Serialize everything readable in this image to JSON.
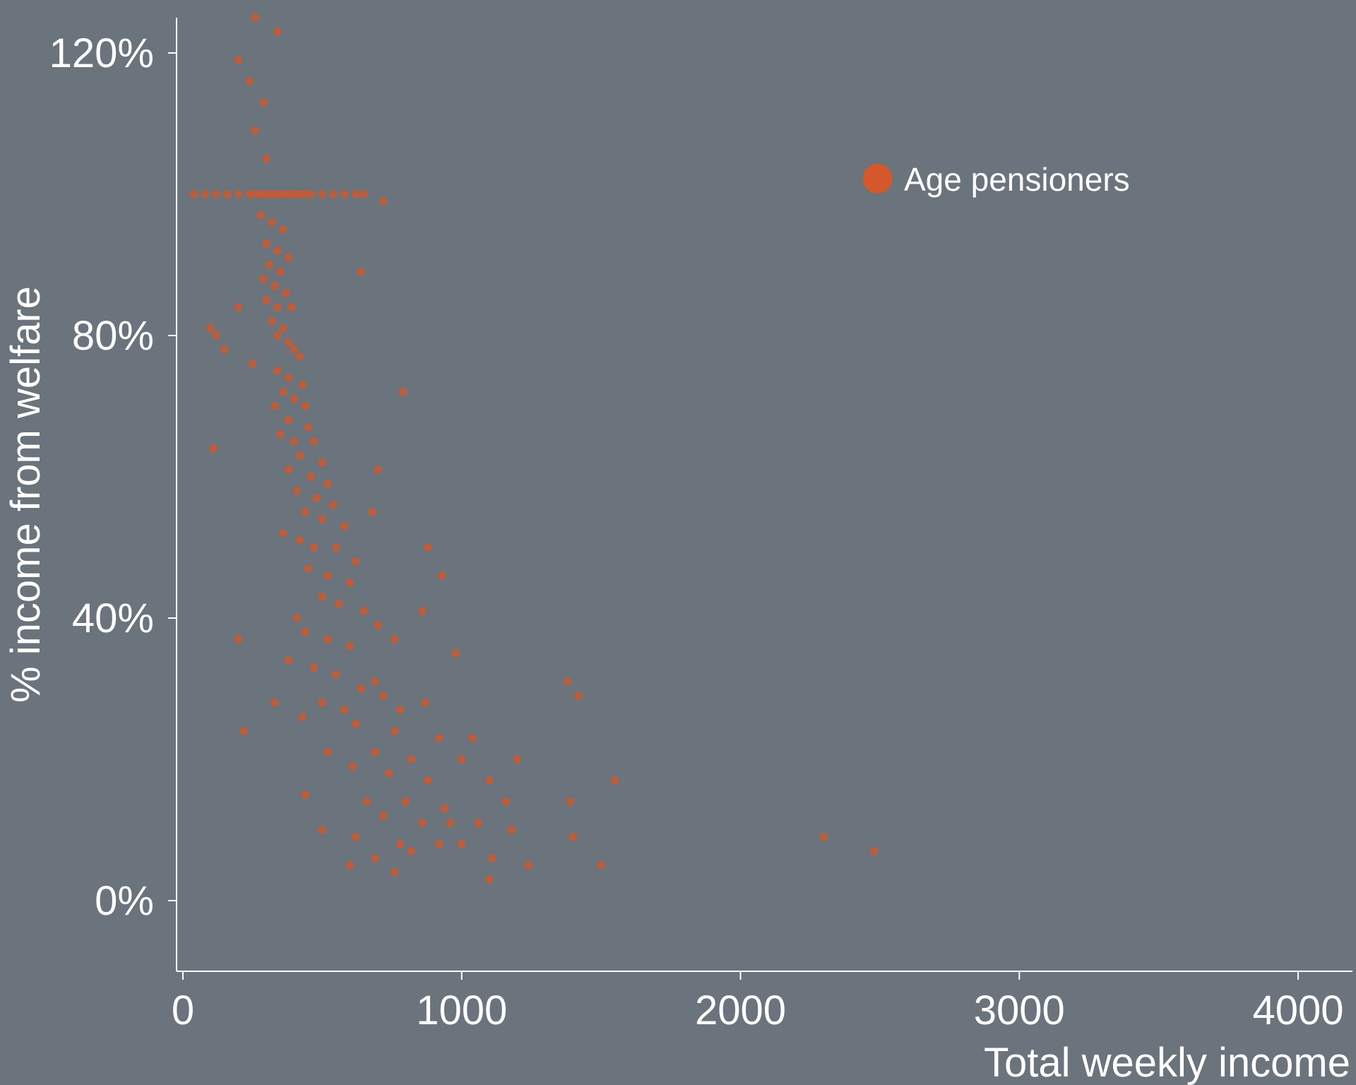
{
  "chart_data": {
    "type": "scatter",
    "title": "",
    "xlabel": "Total weekly income",
    "ylabel": "% income from welfare",
    "xlim": [
      -20,
      4200
    ],
    "ylim": [
      -10,
      125
    ],
    "x_ticks": [
      0,
      1000,
      2000,
      3000,
      4000
    ],
    "x_tick_labels": [
      "0",
      "1000",
      "2000",
      "3000",
      "4000"
    ],
    "y_ticks": [
      0,
      40,
      80,
      120
    ],
    "y_tick_labels": [
      "0%",
      "40%",
      "80%",
      "120%"
    ],
    "grid": false,
    "legend_position": "top-right",
    "colors": {
      "background": "#6b737c",
      "point": "#d4582b",
      "axis": "#ffffff",
      "text": "#ffffff"
    },
    "series": [
      {
        "name": "Age pensioners",
        "color": "#d4582b",
        "points": [
          [
            260,
            125
          ],
          [
            340,
            123
          ],
          [
            200,
            119
          ],
          [
            240,
            116
          ],
          [
            290,
            113
          ],
          [
            260,
            109
          ],
          [
            300,
            105
          ],
          [
            40,
            100
          ],
          [
            80,
            100
          ],
          [
            120,
            100
          ],
          [
            160,
            100
          ],
          [
            200,
            100
          ],
          [
            240,
            100
          ],
          [
            260,
            100
          ],
          [
            280,
            100
          ],
          [
            300,
            100
          ],
          [
            320,
            100
          ],
          [
            340,
            100
          ],
          [
            360,
            100
          ],
          [
            380,
            100
          ],
          [
            400,
            100
          ],
          [
            420,
            100
          ],
          [
            440,
            100
          ],
          [
            460,
            100
          ],
          [
            500,
            100
          ],
          [
            540,
            100
          ],
          [
            580,
            100
          ],
          [
            620,
            100
          ],
          [
            650,
            100
          ],
          [
            720,
            99
          ],
          [
            280,
            97
          ],
          [
            320,
            96
          ],
          [
            360,
            95
          ],
          [
            300,
            93
          ],
          [
            340,
            92
          ],
          [
            380,
            91
          ],
          [
            310,
            90
          ],
          [
            350,
            89
          ],
          [
            640,
            89
          ],
          [
            290,
            88
          ],
          [
            330,
            87
          ],
          [
            370,
            86
          ],
          [
            300,
            85
          ],
          [
            340,
            84
          ],
          [
            390,
            84
          ],
          [
            200,
            84
          ],
          [
            320,
            82
          ],
          [
            360,
            81
          ],
          [
            100,
            81
          ],
          [
            120,
            80
          ],
          [
            340,
            80
          ],
          [
            380,
            79
          ],
          [
            150,
            78
          ],
          [
            400,
            78
          ],
          [
            420,
            77
          ],
          [
            250,
            76
          ],
          [
            340,
            75
          ],
          [
            380,
            74
          ],
          [
            430,
            73
          ],
          [
            360,
            72
          ],
          [
            400,
            71
          ],
          [
            440,
            70
          ],
          [
            790,
            72
          ],
          [
            330,
            70
          ],
          [
            380,
            68
          ],
          [
            450,
            67
          ],
          [
            350,
            66
          ],
          [
            400,
            65
          ],
          [
            470,
            65
          ],
          [
            420,
            63
          ],
          [
            500,
            62
          ],
          [
            110,
            64
          ],
          [
            380,
            61
          ],
          [
            460,
            60
          ],
          [
            520,
            59
          ],
          [
            700,
            61
          ],
          [
            410,
            58
          ],
          [
            480,
            57
          ],
          [
            540,
            56
          ],
          [
            440,
            55
          ],
          [
            500,
            54
          ],
          [
            680,
            55
          ],
          [
            580,
            53
          ],
          [
            360,
            52
          ],
          [
            420,
            51
          ],
          [
            470,
            50
          ],
          [
            550,
            50
          ],
          [
            880,
            50
          ],
          [
            620,
            48
          ],
          [
            450,
            47
          ],
          [
            520,
            46
          ],
          [
            600,
            45
          ],
          [
            930,
            46
          ],
          [
            500,
            43
          ],
          [
            560,
            42
          ],
          [
            650,
            41
          ],
          [
            410,
            40
          ],
          [
            700,
            39
          ],
          [
            860,
            41
          ],
          [
            440,
            38
          ],
          [
            520,
            37
          ],
          [
            600,
            36
          ],
          [
            760,
            37
          ],
          [
            200,
            37
          ],
          [
            980,
            35
          ],
          [
            380,
            34
          ],
          [
            470,
            33
          ],
          [
            550,
            32
          ],
          [
            690,
            31
          ],
          [
            640,
            30
          ],
          [
            720,
            29
          ],
          [
            330,
            28
          ],
          [
            500,
            28
          ],
          [
            580,
            27
          ],
          [
            780,
            27
          ],
          [
            870,
            28
          ],
          [
            1380,
            31
          ],
          [
            1420,
            29
          ],
          [
            430,
            26
          ],
          [
            620,
            25
          ],
          [
            760,
            24
          ],
          [
            920,
            23
          ],
          [
            1040,
            23
          ],
          [
            220,
            24
          ],
          [
            520,
            21
          ],
          [
            690,
            21
          ],
          [
            820,
            20
          ],
          [
            1000,
            20
          ],
          [
            1200,
            20
          ],
          [
            610,
            19
          ],
          [
            740,
            18
          ],
          [
            880,
            17
          ],
          [
            1100,
            17
          ],
          [
            1550,
            17
          ],
          [
            440,
            15
          ],
          [
            660,
            14
          ],
          [
            800,
            14
          ],
          [
            940,
            13
          ],
          [
            1390,
            14
          ],
          [
            1160,
            14
          ],
          [
            720,
            12
          ],
          [
            860,
            11
          ],
          [
            960,
            11
          ],
          [
            1060,
            11
          ],
          [
            1180,
            10
          ],
          [
            500,
            10
          ],
          [
            620,
            9
          ],
          [
            780,
            8
          ],
          [
            920,
            8
          ],
          [
            1400,
            9
          ],
          [
            2300,
            9
          ],
          [
            2480,
            7
          ],
          [
            820,
            7
          ],
          [
            1000,
            8
          ],
          [
            690,
            6
          ],
          [
            1110,
            6
          ],
          [
            1240,
            5
          ],
          [
            1500,
            5
          ],
          [
            600,
            5
          ],
          [
            760,
            4
          ],
          [
            1100,
            3
          ]
        ]
      }
    ]
  }
}
